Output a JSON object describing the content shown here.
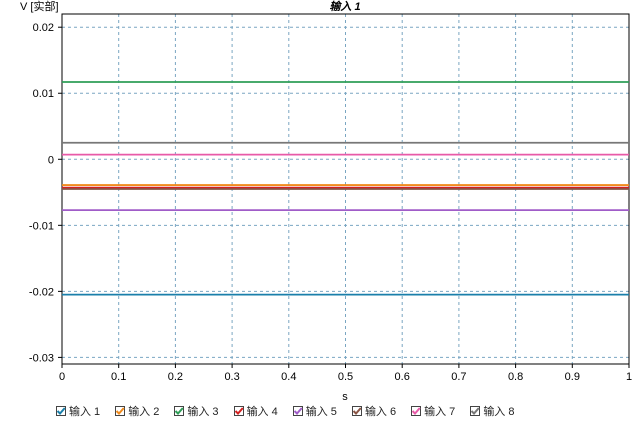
{
  "chart_data": {
    "type": "line",
    "title": "输入 1",
    "ylabel": "V [实部]",
    "xlabel": "s",
    "xlim": [
      0,
      1
    ],
    "ylim": [
      -0.031,
      0.022
    ],
    "x_ticks": [
      "0",
      "0.1",
      "0.2",
      "0.3",
      "0.4",
      "0.5",
      "0.6",
      "0.7",
      "0.8",
      "0.9",
      "1"
    ],
    "x_tick_values": [
      0,
      0.1,
      0.2,
      0.3,
      0.4,
      0.5,
      0.6,
      0.7,
      0.8,
      0.9,
      1
    ],
    "y_ticks": [
      "0.02",
      "0.01",
      "0",
      "-0.01",
      "-0.02",
      "-0.03"
    ],
    "y_tick_values": [
      0.02,
      0.01,
      0,
      -0.01,
      -0.02,
      -0.03
    ],
    "grid": true,
    "legend_position": "bottom",
    "series": [
      {
        "name": "输入 1",
        "x": [
          0,
          1
        ],
        "values": [
          -0.0205,
          -0.0205
        ],
        "color": "#1a7faa"
      },
      {
        "name": "输入 2",
        "x": [
          0,
          1
        ],
        "values": [
          -0.0039,
          -0.0039
        ],
        "color": "#f08a1c"
      },
      {
        "name": "输入 3",
        "x": [
          0,
          1
        ],
        "values": [
          0.0117,
          0.0117
        ],
        "color": "#2e9e57"
      },
      {
        "name": "输入 4",
        "x": [
          0,
          1
        ],
        "values": [
          -0.0043,
          -0.0043
        ],
        "color": "#d42020"
      },
      {
        "name": "输入 5",
        "x": [
          0,
          1
        ],
        "values": [
          -0.0077,
          -0.0077
        ],
        "color": "#a05cc8"
      },
      {
        "name": "输入 6",
        "x": [
          0,
          1
        ],
        "values": [
          -0.0045,
          -0.0045
        ],
        "color": "#8a5545"
      },
      {
        "name": "输入 7",
        "x": [
          0,
          1
        ],
        "values": [
          0.0007,
          0.0007
        ],
        "color": "#e85aa8"
      },
      {
        "name": "输入 8",
        "x": [
          0,
          1
        ],
        "values": [
          0.0025,
          0.0025
        ],
        "color": "#777777"
      }
    ]
  }
}
